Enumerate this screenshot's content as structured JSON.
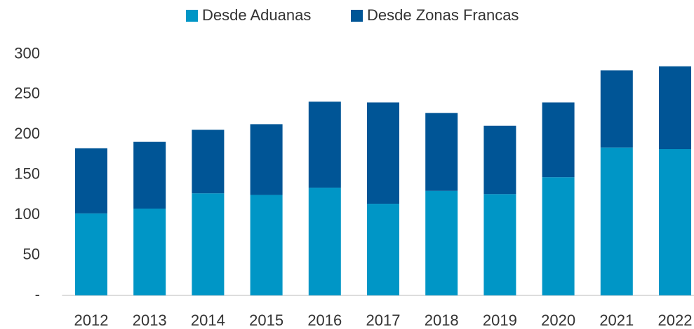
{
  "chart_data": {
    "type": "stacked_bar",
    "categories": [
      "2012",
      "2013",
      "2014",
      "2015",
      "2016",
      "2017",
      "2018",
      "2019",
      "2020",
      "2021",
      "2022"
    ],
    "series": [
      {
        "name": "Desde Aduanas",
        "color": "#0096c6",
        "values": [
          102,
          108,
          127,
          125,
          134,
          114,
          130,
          126,
          147,
          184,
          182
        ]
      },
      {
        "name": "Desde Zonas Francas",
        "color": "#005596",
        "values": [
          81,
          83,
          79,
          88,
          107,
          126,
          97,
          85,
          93,
          96,
          103
        ]
      }
    ],
    "ylim": [
      0,
      300
    ],
    "yticks": [
      {
        "value": 0,
        "label": "-"
      },
      50,
      100,
      150,
      200,
      250,
      300
    ],
    "legend": "top"
  }
}
